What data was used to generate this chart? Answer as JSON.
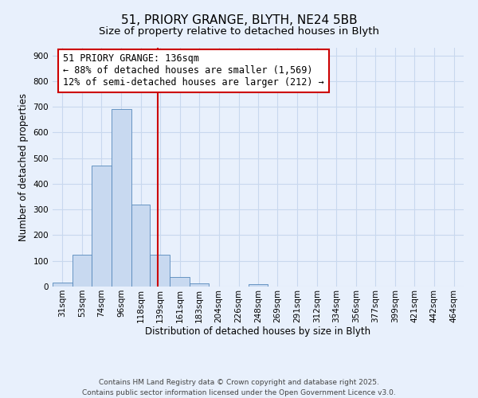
{
  "title_line1": "51, PRIORY GRANGE, BLYTH, NE24 5BB",
  "title_line2": "Size of property relative to detached houses in Blyth",
  "xlabel": "Distribution of detached houses by size in Blyth",
  "ylabel": "Number of detached properties",
  "bar_labels": [
    "31sqm",
    "53sqm",
    "74sqm",
    "96sqm",
    "118sqm",
    "139sqm",
    "161sqm",
    "183sqm",
    "204sqm",
    "226sqm",
    "248sqm",
    "269sqm",
    "291sqm",
    "312sqm",
    "334sqm",
    "356sqm",
    "377sqm",
    "399sqm",
    "421sqm",
    "442sqm",
    "464sqm"
  ],
  "bar_values": [
    15,
    125,
    470,
    690,
    320,
    125,
    37,
    12,
    0,
    0,
    8,
    0,
    0,
    0,
    0,
    0,
    0,
    0,
    0,
    0,
    0
  ],
  "bin_edges": [
    20,
    42,
    63,
    85,
    107,
    128,
    150,
    172,
    193,
    215,
    237,
    258,
    280,
    302,
    323,
    345,
    367,
    388,
    410,
    431,
    453,
    475
  ],
  "bar_color": "#c8d9f0",
  "bar_edge_color": "#5588bb",
  "vline_x": 136,
  "vline_color": "#cc0000",
  "annotation_line1": "51 PRIORY GRANGE: 136sqm",
  "annotation_line2": "← 88% of detached houses are smaller (1,569)",
  "annotation_line3": "12% of semi-detached houses are larger (212) →",
  "annotation_box_color": "#cc0000",
  "ylim": [
    0,
    930
  ],
  "yticks": [
    0,
    100,
    200,
    300,
    400,
    500,
    600,
    700,
    800,
    900
  ],
  "grid_color": "#c8d8ee",
  "background_color": "#e8f0fc",
  "footer_line1": "Contains HM Land Registry data © Crown copyright and database right 2025.",
  "footer_line2": "Contains public sector information licensed under the Open Government Licence v3.0.",
  "title_fontsize": 11,
  "subtitle_fontsize": 9.5,
  "axis_label_fontsize": 8.5,
  "tick_fontsize": 7.5,
  "annotation_fontsize": 8.5,
  "footer_fontsize": 6.5
}
